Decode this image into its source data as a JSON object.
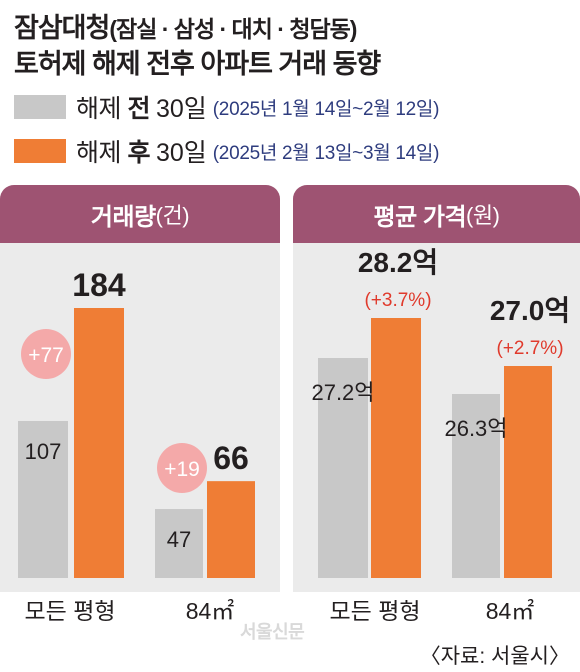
{
  "title": {
    "line1_main": "잠삼대청",
    "line1_paren": "(잠실 · 삼성 · 대치 · 청담동)",
    "line2": "토허제 해제 전후 아파트 거래 동향"
  },
  "legend": [
    {
      "label_prefix": "해제 ",
      "label_bold": "전",
      "days": "30일",
      "range": "(2025년 1월 14일~2월 12일)",
      "color": "#c8c8c8"
    },
    {
      "label_prefix": "해제 ",
      "label_bold": "후",
      "days": "30일",
      "range": "(2025년 2월 13일~3월 14일)",
      "color": "#ef7d35"
    }
  ],
  "colors": {
    "before": "#c8c8c8",
    "after": "#ef7d35",
    "header": "#9e5372",
    "panel_bg": "#ebebeb",
    "diff_circle": "#f4a9a9",
    "pct_text": "#e03a2c",
    "legend_range": "#2e3c7e"
  },
  "panels": [
    {
      "header": "거래량",
      "unit": "(건)"
    },
    {
      "header": "평균 가격",
      "unit": "(원)"
    }
  ],
  "chart_data": [
    {
      "type": "bar",
      "title": "거래량(건)",
      "categories": [
        "모든 평형",
        "84㎡"
      ],
      "series": [
        {
          "name": "해제 전",
          "values": [
            107,
            47
          ],
          "labels": [
            "107",
            "47"
          ]
        },
        {
          "name": "해제 후",
          "values": [
            184,
            66
          ],
          "labels": [
            "184",
            "66"
          ]
        }
      ],
      "annotations": [
        "+77",
        "+19"
      ]
    },
    {
      "type": "bar",
      "title": "평균 가격(원)",
      "categories": [
        "모든 평형",
        "84㎡"
      ],
      "series": [
        {
          "name": "해제 전",
          "values": [
            27.2,
            26.3
          ],
          "labels": [
            "27.2억",
            "26.3억"
          ]
        },
        {
          "name": "해제 후",
          "values": [
            28.2,
            27.0
          ],
          "labels": [
            "28.2억",
            "27.0억"
          ]
        }
      ],
      "annotations": [
        "(+3.7%)",
        "(+2.7%)"
      ]
    }
  ],
  "category_labels": [
    "모든 평형",
    "84㎡",
    "모든 평형",
    "84㎡"
  ],
  "watermark": "서울신문",
  "source": "〈자료: 서울시〉"
}
